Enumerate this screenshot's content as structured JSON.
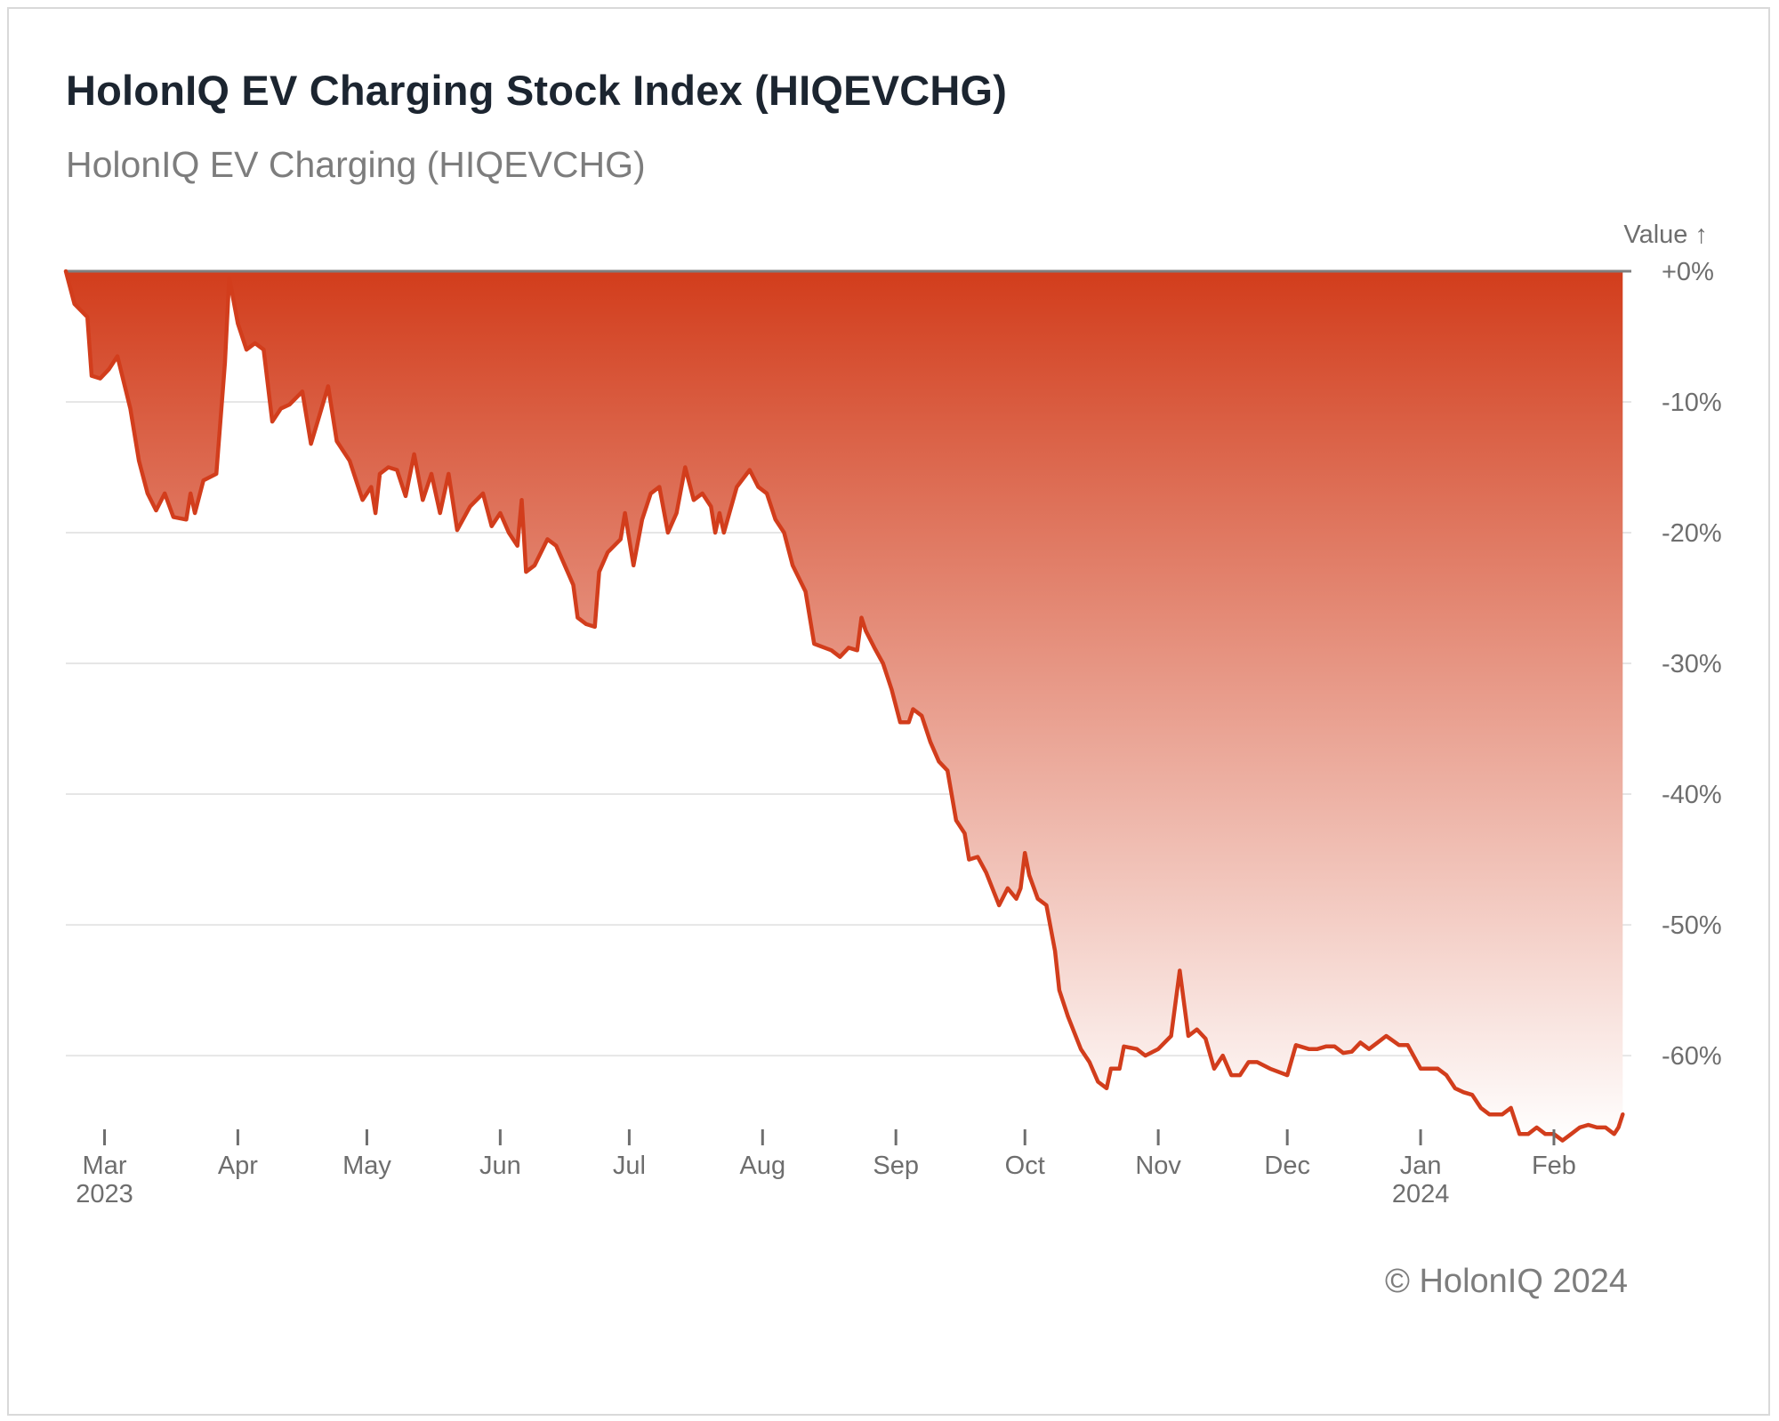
{
  "header": {
    "title": "HolonIQ EV Charging Stock Index (HIQEVCHG)",
    "subtitle": "HolonIQ EV Charging (HIQEVCHG)"
  },
  "footer": {
    "copyright": "© HolonIQ 2024"
  },
  "colors": {
    "line": "#d23d1c",
    "fill_top": "#d23d1c",
    "fill_bottom": "#ffffff",
    "grid": "#e6e6e6",
    "baseline": "#7f7f7f"
  },
  "chart_data": {
    "type": "area",
    "title": "HolonIQ EV Charging Stock Index (HIQEVCHG)",
    "subtitle": "HolonIQ EV Charging (HIQEVCHG)",
    "ylabel": "Value ↑",
    "y_unit": "%",
    "ylim": [
      -67,
      0
    ],
    "yticks": [
      0,
      -10,
      -20,
      -30,
      -40,
      -50,
      -60
    ],
    "ytick_labels": [
      "+0%",
      "-10%",
      "-20%",
      "-30%",
      "-40%",
      "-50%",
      "-60%"
    ],
    "y_axis_side": "right",
    "grid": true,
    "xlim": [
      "2023-02-20",
      "2024-02-19"
    ],
    "xticks": [
      {
        "date": "2023-03-01",
        "label": "Mar",
        "sublabel": "2023"
      },
      {
        "date": "2023-04-01",
        "label": "Apr",
        "sublabel": ""
      },
      {
        "date": "2023-05-01",
        "label": "May",
        "sublabel": ""
      },
      {
        "date": "2023-06-01",
        "label": "Jun",
        "sublabel": ""
      },
      {
        "date": "2023-07-01",
        "label": "Jul",
        "sublabel": ""
      },
      {
        "date": "2023-08-01",
        "label": "Aug",
        "sublabel": ""
      },
      {
        "date": "2023-09-01",
        "label": "Sep",
        "sublabel": ""
      },
      {
        "date": "2023-10-01",
        "label": "Oct",
        "sublabel": ""
      },
      {
        "date": "2023-11-01",
        "label": "Nov",
        "sublabel": ""
      },
      {
        "date": "2023-12-01",
        "label": "Dec",
        "sublabel": ""
      },
      {
        "date": "2024-01-01",
        "label": "Jan",
        "sublabel": "2024"
      },
      {
        "date": "2024-02-01",
        "label": "Feb",
        "sublabel": ""
      }
    ],
    "series": [
      {
        "points": [
          [
            "2023-02-20",
            0
          ],
          [
            "2023-02-22",
            -2.5
          ],
          [
            "2023-02-25",
            -3.5
          ],
          [
            "2023-02-26",
            -8
          ],
          [
            "2023-02-28",
            -8.2
          ],
          [
            "2023-03-02",
            -7.5
          ],
          [
            "2023-03-04",
            -6.5
          ],
          [
            "2023-03-07",
            -10.5
          ],
          [
            "2023-03-09",
            -14.5
          ],
          [
            "2023-03-11",
            -17
          ],
          [
            "2023-03-13",
            -18.3
          ],
          [
            "2023-03-15",
            -17
          ],
          [
            "2023-03-17",
            -18.8
          ],
          [
            "2023-03-20",
            -19
          ],
          [
            "2023-03-21",
            -17
          ],
          [
            "2023-03-22",
            -18.5
          ],
          [
            "2023-03-24",
            -16
          ],
          [
            "2023-03-27",
            -15.5
          ],
          [
            "2023-03-29",
            -7
          ],
          [
            "2023-03-30",
            -0.5
          ],
          [
            "2023-04-01",
            -4
          ],
          [
            "2023-04-03",
            -6
          ],
          [
            "2023-04-05",
            -5.5
          ],
          [
            "2023-04-07",
            -6
          ],
          [
            "2023-04-09",
            -11.5
          ],
          [
            "2023-04-11",
            -10.5
          ],
          [
            "2023-04-13",
            -10.2
          ],
          [
            "2023-04-16",
            -9.2
          ],
          [
            "2023-04-18",
            -13.2
          ],
          [
            "2023-04-20",
            -11
          ],
          [
            "2023-04-22",
            -8.8
          ],
          [
            "2023-04-24",
            -13
          ],
          [
            "2023-04-27",
            -14.5
          ],
          [
            "2023-04-30",
            -17.5
          ],
          [
            "2023-05-02",
            -16.5
          ],
          [
            "2023-05-03",
            -18.5
          ],
          [
            "2023-05-04",
            -15.5
          ],
          [
            "2023-05-06",
            -15
          ],
          [
            "2023-05-08",
            -15.2
          ],
          [
            "2023-05-10",
            -17.2
          ],
          [
            "2023-05-12",
            -14
          ],
          [
            "2023-05-14",
            -17.5
          ],
          [
            "2023-05-16",
            -15.5
          ],
          [
            "2023-05-18",
            -18.5
          ],
          [
            "2023-05-20",
            -15.5
          ],
          [
            "2023-05-22",
            -19.8
          ],
          [
            "2023-05-25",
            -18
          ],
          [
            "2023-05-28",
            -17
          ],
          [
            "2023-05-30",
            -19.5
          ],
          [
            "2023-06-01",
            -18.5
          ],
          [
            "2023-06-03",
            -20
          ],
          [
            "2023-06-05",
            -21
          ],
          [
            "2023-06-06",
            -17.5
          ],
          [
            "2023-06-07",
            -23
          ],
          [
            "2023-06-09",
            -22.5
          ],
          [
            "2023-06-12",
            -20.5
          ],
          [
            "2023-06-14",
            -21
          ],
          [
            "2023-06-16",
            -22.5
          ],
          [
            "2023-06-18",
            -24
          ],
          [
            "2023-06-19",
            -26.5
          ],
          [
            "2023-06-21",
            -27
          ],
          [
            "2023-06-23",
            -27.2
          ],
          [
            "2023-06-24",
            -23
          ],
          [
            "2023-06-26",
            -21.5
          ],
          [
            "2023-06-29",
            -20.5
          ],
          [
            "2023-06-30",
            -18.5
          ],
          [
            "2023-07-02",
            -22.5
          ],
          [
            "2023-07-04",
            -19
          ],
          [
            "2023-07-06",
            -17
          ],
          [
            "2023-07-08",
            -16.5
          ],
          [
            "2023-07-10",
            -20
          ],
          [
            "2023-07-12",
            -18.5
          ],
          [
            "2023-07-14",
            -15
          ],
          [
            "2023-07-16",
            -17.5
          ],
          [
            "2023-07-18",
            -17
          ],
          [
            "2023-07-20",
            -18
          ],
          [
            "2023-07-21",
            -20
          ],
          [
            "2023-07-22",
            -18.5
          ],
          [
            "2023-07-23",
            -20
          ],
          [
            "2023-07-26",
            -16.5
          ],
          [
            "2023-07-29",
            -15.2
          ],
          [
            "2023-07-31",
            -16.5
          ],
          [
            "2023-08-02",
            -17
          ],
          [
            "2023-08-04",
            -19
          ],
          [
            "2023-08-06",
            -20
          ],
          [
            "2023-08-08",
            -22.5
          ],
          [
            "2023-08-11",
            -24.5
          ],
          [
            "2023-08-13",
            -28.5
          ],
          [
            "2023-08-17",
            -29
          ],
          [
            "2023-08-19",
            -29.5
          ],
          [
            "2023-08-21",
            -28.8
          ],
          [
            "2023-08-23",
            -29
          ],
          [
            "2023-08-24",
            -26.5
          ],
          [
            "2023-08-25",
            -27.5
          ],
          [
            "2023-08-27",
            -28.8
          ],
          [
            "2023-08-29",
            -30
          ],
          [
            "2023-08-31",
            -32
          ],
          [
            "2023-09-02",
            -34.5
          ],
          [
            "2023-09-04",
            -34.5
          ],
          [
            "2023-09-05",
            -33.5
          ],
          [
            "2023-09-07",
            -34
          ],
          [
            "2023-09-09",
            -36
          ],
          [
            "2023-09-11",
            -37.5
          ],
          [
            "2023-09-13",
            -38.2
          ],
          [
            "2023-09-15",
            -42
          ],
          [
            "2023-09-17",
            -43
          ],
          [
            "2023-09-18",
            -45
          ],
          [
            "2023-09-20",
            -44.8
          ],
          [
            "2023-09-22",
            -46
          ],
          [
            "2023-09-25",
            -48.5
          ],
          [
            "2023-09-27",
            -47.2
          ],
          [
            "2023-09-29",
            -48
          ],
          [
            "2023-09-30",
            -47.2
          ],
          [
            "2023-10-01",
            -44.5
          ],
          [
            "2023-10-02",
            -46.2
          ],
          [
            "2023-10-04",
            -48
          ],
          [
            "2023-10-06",
            -48.5
          ],
          [
            "2023-10-08",
            -52
          ],
          [
            "2023-10-09",
            -55
          ],
          [
            "2023-10-11",
            -57
          ],
          [
            "2023-10-14",
            -59.5
          ],
          [
            "2023-10-16",
            -60.5
          ],
          [
            "2023-10-18",
            -62
          ],
          [
            "2023-10-20",
            -62.5
          ],
          [
            "2023-10-21",
            -61
          ],
          [
            "2023-10-23",
            -61
          ],
          [
            "2023-10-24",
            -59.3
          ],
          [
            "2023-10-27",
            -59.5
          ],
          [
            "2023-10-29",
            -60
          ],
          [
            "2023-11-01",
            -59.5
          ],
          [
            "2023-11-04",
            -58.5
          ],
          [
            "2023-11-06",
            -53.5
          ],
          [
            "2023-11-08",
            -58.5
          ],
          [
            "2023-11-10",
            -58
          ],
          [
            "2023-11-12",
            -58.7
          ],
          [
            "2023-11-14",
            -61
          ],
          [
            "2023-11-16",
            -60
          ],
          [
            "2023-11-18",
            -61.5
          ],
          [
            "2023-11-20",
            -61.5
          ],
          [
            "2023-11-22",
            -60.5
          ],
          [
            "2023-11-24",
            -60.5
          ],
          [
            "2023-11-27",
            -61
          ],
          [
            "2023-12-01",
            -61.5
          ],
          [
            "2023-12-03",
            -59.2
          ],
          [
            "2023-12-06",
            -59.5
          ],
          [
            "2023-12-08",
            -59.5
          ],
          [
            "2023-12-10",
            -59.3
          ],
          [
            "2023-12-12",
            -59.3
          ],
          [
            "2023-12-14",
            -59.8
          ],
          [
            "2023-12-16",
            -59.7
          ],
          [
            "2023-12-18",
            -59
          ],
          [
            "2023-12-20",
            -59.5
          ],
          [
            "2023-12-22",
            -59
          ],
          [
            "2023-12-24",
            -58.5
          ],
          [
            "2023-12-27",
            -59.2
          ],
          [
            "2023-12-29",
            -59.2
          ],
          [
            "2024-01-01",
            -61
          ],
          [
            "2024-01-03",
            -61
          ],
          [
            "2024-01-05",
            -61
          ],
          [
            "2024-01-07",
            -61.5
          ],
          [
            "2024-01-09",
            -62.5
          ],
          [
            "2024-01-11",
            -62.8
          ],
          [
            "2024-01-13",
            -63
          ],
          [
            "2024-01-15",
            -64
          ],
          [
            "2024-01-17",
            -64.5
          ],
          [
            "2024-01-20",
            -64.5
          ],
          [
            "2024-01-22",
            -64
          ],
          [
            "2024-01-24",
            -66
          ],
          [
            "2024-01-26",
            -66
          ],
          [
            "2024-01-28",
            -65.5
          ],
          [
            "2024-01-30",
            -66
          ],
          [
            "2024-02-01",
            -66
          ],
          [
            "2024-02-03",
            -66.5
          ],
          [
            "2024-02-05",
            -66
          ],
          [
            "2024-02-07",
            -65.5
          ],
          [
            "2024-02-09",
            -65.3
          ],
          [
            "2024-02-11",
            -65.5
          ],
          [
            "2024-02-13",
            -65.5
          ],
          [
            "2024-02-15",
            -66
          ],
          [
            "2024-02-16",
            -65.5
          ],
          [
            "2024-02-17",
            -64.5
          ]
        ]
      }
    ]
  }
}
